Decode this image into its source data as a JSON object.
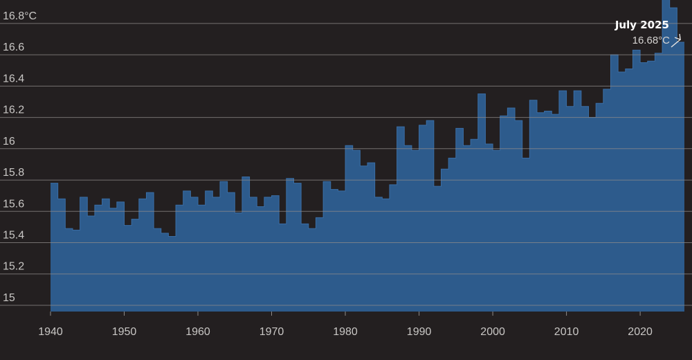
{
  "chart_data": {
    "type": "area",
    "title": "",
    "xlabel": "",
    "ylabel": "",
    "x": [
      1940,
      1941,
      1942,
      1943,
      1944,
      1945,
      1946,
      1947,
      1948,
      1949,
      1950,
      1951,
      1952,
      1953,
      1954,
      1955,
      1956,
      1957,
      1958,
      1959,
      1960,
      1961,
      1962,
      1963,
      1964,
      1965,
      1966,
      1967,
      1968,
      1969,
      1970,
      1971,
      1972,
      1973,
      1974,
      1975,
      1976,
      1977,
      1978,
      1979,
      1980,
      1981,
      1982,
      1983,
      1984,
      1985,
      1986,
      1987,
      1988,
      1989,
      1990,
      1991,
      1992,
      1993,
      1994,
      1995,
      1996,
      1997,
      1998,
      1999,
      2000,
      2001,
      2002,
      2003,
      2004,
      2005,
      2006,
      2007,
      2008,
      2009,
      2010,
      2011,
      2012,
      2013,
      2014,
      2015,
      2016,
      2017,
      2018,
      2019,
      2020,
      2021,
      2022,
      2023,
      2024,
      2025
    ],
    "series": [
      {
        "values": [
          15.78,
          15.68,
          15.49,
          15.48,
          15.69,
          15.57,
          15.64,
          15.68,
          15.62,
          15.66,
          15.51,
          15.55,
          15.68,
          15.72,
          15.49,
          15.46,
          15.44,
          15.64,
          15.73,
          15.69,
          15.64,
          15.73,
          15.69,
          15.79,
          15.72,
          15.59,
          15.82,
          15.69,
          15.63,
          15.69,
          15.7,
          15.52,
          15.81,
          15.78,
          15.52,
          15.49,
          15.56,
          15.79,
          15.74,
          15.73,
          16.02,
          15.99,
          15.89,
          15.91,
          15.69,
          15.68,
          15.77,
          16.14,
          16.02,
          15.99,
          16.15,
          16.18,
          15.76,
          15.87,
          15.94,
          16.13,
          16.02,
          16.06,
          16.35,
          16.03,
          15.99,
          16.21,
          16.26,
          16.18,
          15.94,
          16.31,
          16.23,
          16.24,
          16.22,
          16.37,
          16.27,
          16.37,
          16.27,
          16.2,
          16.29,
          16.38,
          16.6,
          16.49,
          16.51,
          16.63,
          16.55,
          16.56,
          16.61,
          16.97,
          16.9,
          16.68
        ],
        "color": "#2d5b8c"
      }
    ],
    "xlim": [
      1940,
      2025
    ],
    "ylim": [
      14.96,
      16.95
    ],
    "yticks": [
      {
        "value": 15.0,
        "label": "15"
      },
      {
        "value": 15.2,
        "label": "15.2"
      },
      {
        "value": 15.4,
        "label": "15.4"
      },
      {
        "value": 15.6,
        "label": "15.6"
      },
      {
        "value": 15.8,
        "label": "15.8"
      },
      {
        "value": 16.0,
        "label": "16"
      },
      {
        "value": 16.2,
        "label": "16.2"
      },
      {
        "value": 16.4,
        "label": "16.4"
      },
      {
        "value": 16.6,
        "label": "16.6"
      },
      {
        "value": 16.8,
        "label": "16.8°C"
      }
    ],
    "xticks": [
      {
        "value": 1940,
        "label": "1940"
      },
      {
        "value": 1950,
        "label": "1950"
      },
      {
        "value": 1960,
        "label": "1960"
      },
      {
        "value": 1970,
        "label": "1970"
      },
      {
        "value": 1980,
        "label": "1980"
      },
      {
        "value": 1990,
        "label": "1990"
      },
      {
        "value": 2000,
        "label": "2000"
      },
      {
        "value": 2010,
        "label": "2010"
      },
      {
        "value": 2020,
        "label": "2020"
      }
    ],
    "grid": true,
    "annotation": {
      "title": "July 2025",
      "value_label": "16.68°C",
      "x": 2025,
      "y": 16.68
    }
  },
  "colors": {
    "background": "#231f20",
    "bar_fill": "#2d5b8c",
    "bar_edge": "#3a6ea6",
    "gridline": "#8f8c8a",
    "tick_text": "#c9c7c5"
  }
}
